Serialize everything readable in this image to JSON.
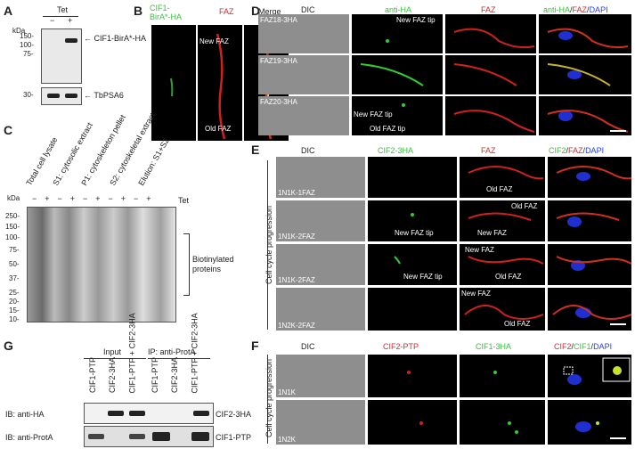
{
  "panels": {
    "A": "A",
    "B": "B",
    "C": "C",
    "D": "D",
    "E": "E",
    "F": "F",
    "G": "G"
  },
  "A": {
    "tet": "Tet",
    "minus": "−",
    "plus": "+",
    "kda": "kDa",
    "markers_top": [
      "150-",
      "100-",
      "75-"
    ],
    "marker_bottom": "30-",
    "band1": "CIF1-BirA*-HA",
    "band2": "TbPSA6"
  },
  "B": {
    "col1": "CIF1-BirA*-HA",
    "col2": "FAZ",
    "col3": "Merge",
    "new_faz": "New FAZ",
    "old_faz": "Old FAZ"
  },
  "C": {
    "kda": "kDa",
    "tet": "Tet",
    "lanes": [
      "Total cell lysate",
      "S1: cytosolic extract",
      "P1: cytoskeleton pellet",
      "S2: cytoskeletal extract",
      "Elution: S1+S2"
    ],
    "markers": [
      "250-",
      "150-",
      "100-",
      "75-",
      "50-",
      "37-",
      "25-",
      "20-",
      "15-",
      "10-"
    ],
    "bracket": "Biotinylated proteins"
  },
  "D": {
    "cols": [
      "DIC",
      "anti-HA",
      "FAZ"
    ],
    "merge": {
      "a": "anti-HA",
      "b": "FAZ",
      "c": "DAPI"
    },
    "rows": [
      "FAZ18-3HA",
      "FAZ19-3HA",
      "FAZ20-3HA"
    ],
    "new_tip": "New FAZ tip",
    "new_tip2": "New FAZ tip",
    "old_tip": "Old FAZ tip"
  },
  "E": {
    "cols": [
      "DIC",
      "CIF2-3HA",
      "FAZ"
    ],
    "merge": {
      "a": "CIF2",
      "b": "FAZ",
      "c": "DAPI"
    },
    "rows": [
      "1N1K-1FAZ",
      "1N1K-2FAZ",
      "1N1K-2FAZ",
      "1N2K-2FAZ"
    ],
    "side": "Cell cycle progression",
    "ann": {
      "old_faz": "Old FAZ",
      "new_tip": "New FAZ tip",
      "new_faz": "New FAZ"
    }
  },
  "F": {
    "cols": [
      "DIC",
      "CIF2-PTP",
      "CIF1-3HA"
    ],
    "merge": {
      "a": "CIF2",
      "b": "CIF1",
      "c": "DAPI"
    },
    "rows": [
      "1N1K",
      "1N2K"
    ],
    "side": "Cell cycle progression"
  },
  "G": {
    "input": "Input",
    "ip": "IP: anti-ProtA",
    "lanes": [
      "CIF1-PTP",
      "CIF2-3HA",
      "CIF1-PTP + CIF2-3HA",
      "CIF1-PTP",
      "CIF2-3HA",
      "CIF1-PTP + CIF2-3HA"
    ],
    "ib1": "IB: anti-HA",
    "ib2": "IB: anti-ProtA",
    "band1": "CIF2-3HA",
    "band2": "CIF1-PTP"
  },
  "colors": {
    "green": "#35c13b",
    "red": "#e02525",
    "blue": "#2040ff"
  }
}
